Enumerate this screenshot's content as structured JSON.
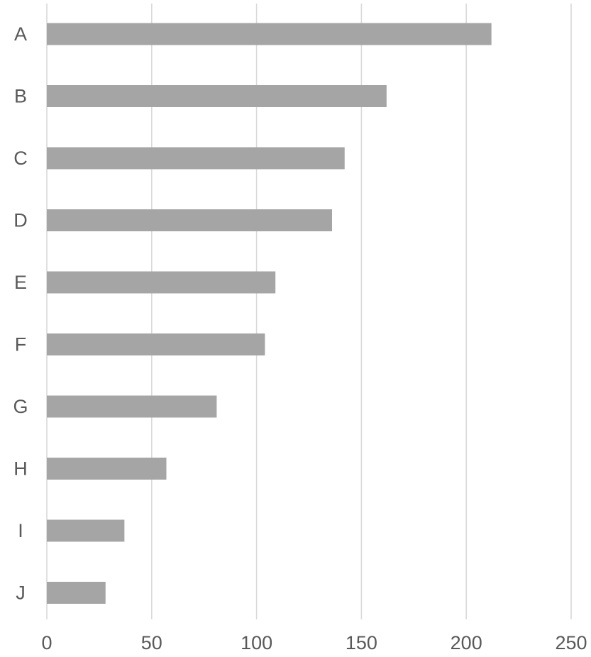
{
  "chart_data": {
    "type": "bar",
    "orientation": "horizontal",
    "categories": [
      "A",
      "B",
      "C",
      "D",
      "E",
      "F",
      "G",
      "H",
      "I",
      "J"
    ],
    "values": [
      212,
      162,
      142,
      136,
      109,
      104,
      81,
      57,
      37,
      28
    ],
    "title": "",
    "xlabel": "",
    "ylabel": "",
    "xlim": [
      0,
      250
    ],
    "x_ticks": [
      0,
      50,
      100,
      150,
      200,
      250
    ],
    "x_tick_labels": [
      "0",
      "50",
      "100",
      "150",
      "200",
      "250"
    ],
    "grid": "vertical",
    "legend": "none",
    "colors": {
      "bar": "#a5a5a5",
      "grid": "#d9d9d9",
      "text": "#595959"
    }
  }
}
